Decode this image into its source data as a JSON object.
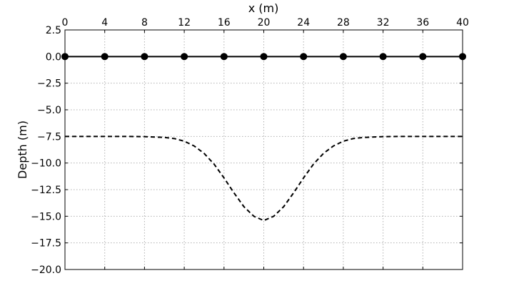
{
  "chart_data": {
    "type": "line",
    "title": "",
    "xlabel": "x (m)",
    "ylabel": "Depth (m)",
    "xlim": [
      0,
      40
    ],
    "ylim": [
      -20,
      2.5
    ],
    "x_axis_position": "top",
    "xticks": [
      0,
      4,
      8,
      12,
      16,
      20,
      24,
      28,
      32,
      36,
      40
    ],
    "yticks": [
      2.5,
      0,
      -2.5,
      -5,
      -7.5,
      -10,
      -12.5,
      -15,
      -17.5,
      -20
    ],
    "xtick_labels": [
      "0",
      "4",
      "8",
      "12",
      "16",
      "20",
      "24",
      "28",
      "32",
      "36",
      "40"
    ],
    "ytick_labels": [
      "2.5",
      "0.0",
      "−2.5",
      "−5.0",
      "−7.5",
      "−10.0",
      "−12.5",
      "−15.0",
      "−17.5",
      "−20.0"
    ],
    "grid": true,
    "series": [
      {
        "style": "solid-with-markers",
        "color": "#000000",
        "x": [
          0,
          4,
          8,
          12,
          16,
          20,
          24,
          28,
          32,
          36,
          40
        ],
        "y": [
          0,
          0,
          0,
          0,
          0,
          0,
          0,
          0,
          0,
          0,
          0
        ]
      },
      {
        "style": "dashed",
        "color": "#000000",
        "x": [
          0,
          2,
          4,
          6,
          8,
          10,
          11,
          12,
          13,
          14,
          15,
          16,
          17,
          18,
          19,
          20,
          21,
          22,
          23,
          24,
          25,
          26,
          27,
          28,
          29,
          30,
          32,
          34,
          36,
          38,
          40
        ],
        "y": [
          -7.5,
          -7.5,
          -7.5,
          -7.5,
          -7.52,
          -7.6,
          -7.7,
          -7.95,
          -8.4,
          -9.1,
          -10.1,
          -11.4,
          -12.8,
          -14.1,
          -15.0,
          -15.4,
          -15.0,
          -14.1,
          -12.8,
          -11.4,
          -10.1,
          -9.1,
          -8.4,
          -7.95,
          -7.7,
          -7.6,
          -7.52,
          -7.5,
          -7.5,
          -7.5,
          -7.5
        ]
      }
    ]
  }
}
